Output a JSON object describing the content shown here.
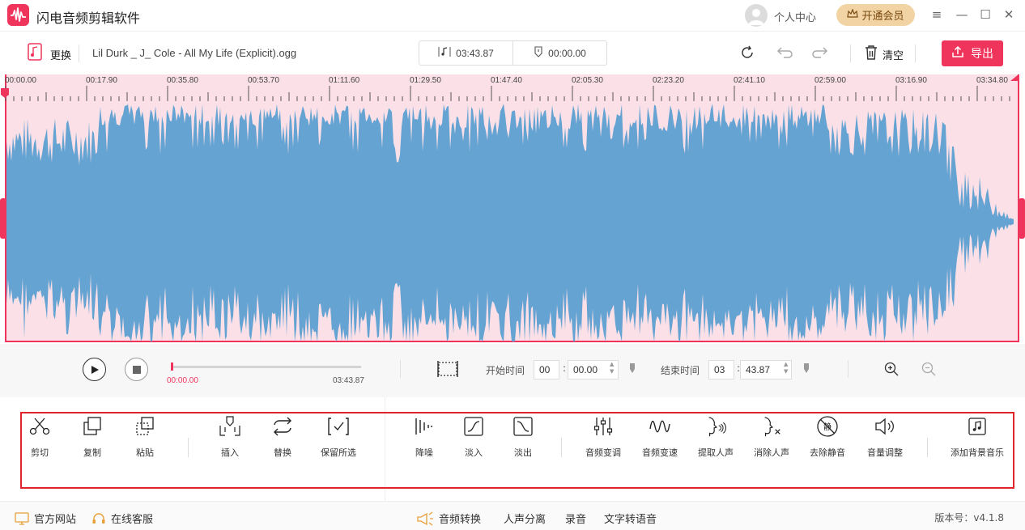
{
  "app": {
    "title": "闪电音频剪辑软件"
  },
  "header": {
    "user_center": "个人中心",
    "vip_label": "开通会员"
  },
  "file_bar": {
    "replace_label": "更换",
    "file_name": "Lil Durk _ J_ Cole - All My Life (Explicit).ogg",
    "duration": "03:43.87",
    "selection_time": "00:00.00",
    "clear_label": "清空",
    "export_label": "导出"
  },
  "ruler": {
    "labels": [
      "00:00.00",
      "00:17.90",
      "00:35.80",
      "00:53.70",
      "01:11.60",
      "01:29.50",
      "01:47.40",
      "02:05.30",
      "02:23.20",
      "02:41.10",
      "02:59.00",
      "03:16.90",
      "03:34.80"
    ]
  },
  "player": {
    "current_time": "00:00.00",
    "total_time": "03:43.87",
    "progress": 0,
    "start_label": "开始时间",
    "start_min": "00",
    "start_sec": "00.00",
    "end_label": "结束时间",
    "end_min": "03",
    "end_sec": "43.87"
  },
  "tools": {
    "cut": "剪切",
    "copy": "复制",
    "paste": "粘贴",
    "insert": "插入",
    "replace": "替换",
    "keep_selected": "保留所选",
    "denoise": "降噪",
    "fade_in": "淡入",
    "fade_out": "淡出",
    "pitch": "音频变调",
    "speed": "音频变速",
    "extract_voice": "提取人声",
    "remove_voice": "消除人声",
    "remove_silence": "去除静音",
    "volume": "音量调整",
    "add_bgm": "添加背景音乐"
  },
  "footer": {
    "website": "官方网站",
    "support": "在线客服",
    "convert": "音频转换",
    "separate": "人声分离",
    "record": "录音",
    "tts": "文字转语音",
    "version": "版本号：v4.1.8"
  },
  "colors": {
    "accent": "#f0355d",
    "waveform": "#64a3d2",
    "waveform_bg": "#fbe0e7",
    "highlight_frame": "#e0242c"
  }
}
